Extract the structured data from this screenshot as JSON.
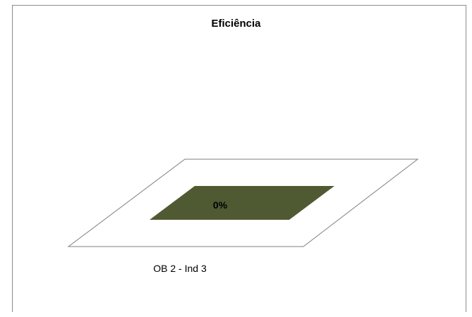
{
  "chart_data": {
    "type": "bar",
    "title": "Eficiência",
    "categories": [
      "OB 2 - Ind 3"
    ],
    "values": [
      0
    ],
    "data_labels": [
      "0%"
    ],
    "ylim": [
      0,
      1
    ],
    "grid": false,
    "legend": "none"
  },
  "colors": {
    "bar_fill": "#4f5a32",
    "frame": "#8c8c8c",
    "floor_stroke": "#7f7f7f"
  }
}
